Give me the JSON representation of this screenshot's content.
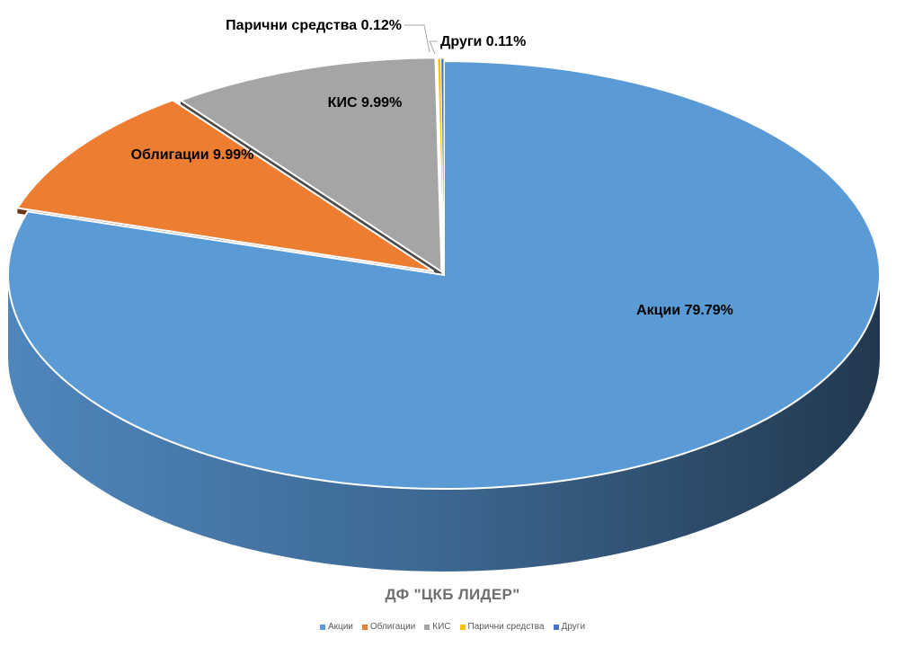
{
  "chart_data": {
    "type": "pie",
    "title": "ДФ \"ЦКБ ЛИДЕР\"",
    "legend_position": "bottom",
    "three_d": true,
    "slices": [
      {
        "name": "Акции",
        "value": 79.79,
        "label": "Акции 79.79%",
        "color": "#5b9bd5"
      },
      {
        "name": "Облигации",
        "value": 9.99,
        "label": "Облигации 9.99%",
        "color": "#ed7d31"
      },
      {
        "name": "КИС",
        "value": 9.99,
        "label": "КИС 9.99%",
        "color": "#a5a5a5"
      },
      {
        "name": "Парични средства",
        "value": 0.12,
        "label": "Парични средства 0.12%",
        "color": "#ffc000"
      },
      {
        "name": "Други",
        "value": 0.11,
        "label": "Други 0.11%",
        "color": "#4472c4"
      }
    ]
  }
}
